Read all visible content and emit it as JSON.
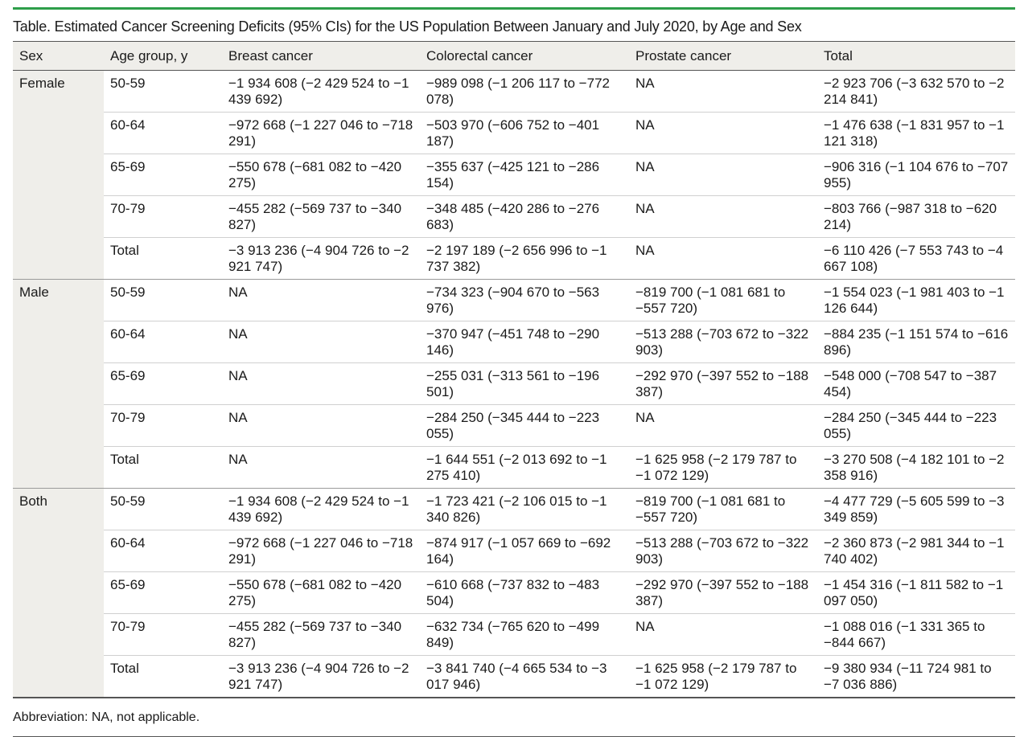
{
  "title": "Table. Estimated Cancer Screening Deficits (95% CIs) for the US Population Between January and July 2020, by Age and Sex",
  "headers": [
    "Sex",
    "Age group, y",
    "Breast cancer",
    "Colorectal cancer",
    "Prostate cancer",
    "Total"
  ],
  "groups": [
    {
      "sex": "Female",
      "rows": [
        {
          "age": "50-59",
          "breast": "−1 934 608 (−2 429 524 to −1 439 692)",
          "colorectal": "−989 098 (−1 206 117 to −772 078)",
          "prostate": "NA",
          "total": "−2 923 706 (−3 632 570 to −2 214 841)"
        },
        {
          "age": "60-64",
          "breast": "−972 668 (−1 227 046 to −718 291)",
          "colorectal": "−503 970 (−606 752 to −401 187)",
          "prostate": "NA",
          "total": "−1 476 638 (−1 831 957 to −1 121 318)"
        },
        {
          "age": "65-69",
          "breast": "−550 678 (−681 082 to −420 275)",
          "colorectal": "−355 637 (−425 121 to −286 154)",
          "prostate": "NA",
          "total": "−906 316 (−1 104 676 to −707 955)"
        },
        {
          "age": "70-79",
          "breast": "−455 282 (−569 737 to −340 827)",
          "colorectal": "−348 485 (−420 286 to −276 683)",
          "prostate": "NA",
          "total": "−803 766 (−987 318 to −620 214)"
        },
        {
          "age": "Total",
          "breast": "−3 913 236 (−4 904 726 to −2 921 747)",
          "colorectal": "−2 197 189 (−2 656 996 to −1 737 382)",
          "prostate": "NA",
          "total": "−6 110 426 (−7 553 743 to −4 667 108)"
        }
      ]
    },
    {
      "sex": "Male",
      "rows": [
        {
          "age": "50-59",
          "breast": "NA",
          "colorectal": "−734 323 (−904 670 to −563 976)",
          "prostate": "−819 700 (−1 081 681 to −557 720)",
          "total": "−1 554 023 (−1 981 403 to −1 126 644)"
        },
        {
          "age": "60-64",
          "breast": "NA",
          "colorectal": "−370 947 (−451 748 to −290 146)",
          "prostate": "−513 288 (−703 672 to −322 903)",
          "total": "−884 235 (−1 151 574 to −616 896)"
        },
        {
          "age": "65-69",
          "breast": "NA",
          "colorectal": "−255 031 (−313 561 to −196 501)",
          "prostate": "−292 970 (−397 552 to −188 387)",
          "total": "−548 000 (−708 547 to −387 454)"
        },
        {
          "age": "70-79",
          "breast": "NA",
          "colorectal": "−284 250 (−345 444 to −223 055)",
          "prostate": "NA",
          "total": "−284 250 (−345 444 to −223 055)"
        },
        {
          "age": "Total",
          "breast": "NA",
          "colorectal": "−1 644 551 (−2 013 692 to −1 275 410)",
          "prostate": "−1 625 958 (−2 179 787 to −1 072 129)",
          "total": "−3 270 508 (−4 182 101 to −2 358 916)"
        }
      ]
    },
    {
      "sex": "Both",
      "rows": [
        {
          "age": "50-59",
          "breast": "−1 934 608 (−2 429 524 to −1 439 692)",
          "colorectal": "−1 723 421 (−2 106 015 to −1 340 826)",
          "prostate": "−819 700 (−1 081 681 to −557 720)",
          "total": "−4 477 729 (−5 605 599 to −3 349 859)"
        },
        {
          "age": "60-64",
          "breast": "−972 668 (−1 227 046 to −718 291)",
          "colorectal": "−874 917 (−1 057 669 to −692 164)",
          "prostate": "−513 288 (−703 672 to −322 903)",
          "total": "−2 360 873 (−2 981 344 to −1 740 402)"
        },
        {
          "age": "65-69",
          "breast": "−550 678 (−681 082 to −420 275)",
          "colorectal": "−610 668 (−737 832 to −483 504)",
          "prostate": "−292 970 (−397 552 to −188 387)",
          "total": "−1 454 316 (−1 811 582 to −1 097 050)"
        },
        {
          "age": "70-79",
          "breast": "−455 282 (−569 737 to −340 827)",
          "colorectal": "−632 734 (−765 620 to −499 849)",
          "prostate": "NA",
          "total": "−1 088 016 (−1 331 365 to −844 667)"
        },
        {
          "age": "Total",
          "breast": "−3 913 236 (−4 904 726 to −2 921 747)",
          "colorectal": "−3 841 740 (−4 665 534 to −3 017 946)",
          "prostate": "−1 625 958 (−2 179 787 to −1 072 129)",
          "total": "−9 380 934 (−11 724 981 to −7 036 886)"
        }
      ]
    }
  ],
  "footnote": "Abbreviation: NA, not applicable.",
  "colors": {
    "accent_rule": "#2e9e4a",
    "header_bg": "#efeeea"
  }
}
